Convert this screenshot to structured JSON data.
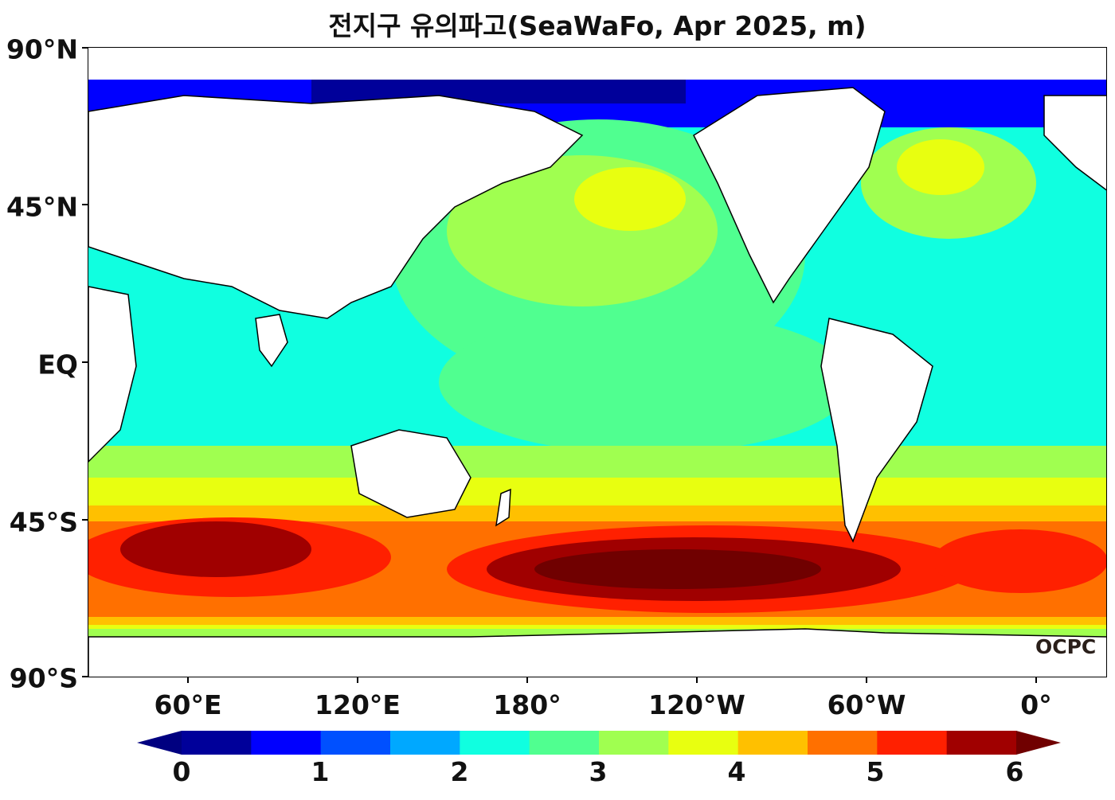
{
  "title": "전지구 유의파고(SeaWaFo, Apr 2025, m)",
  "logo": "OCPC",
  "chart_data": {
    "type": "heatmap",
    "title": "전지구 유의파고(SeaWaFo, Apr 2025, m)",
    "variable": "significant wave height",
    "units": "m",
    "x_ticks": [
      "60°E",
      "120°E",
      "180°",
      "120°W",
      "60°W",
      "0°"
    ],
    "y_ticks": [
      "90°N",
      "45°N",
      "EQ",
      "45°S",
      "90°S"
    ],
    "lon_range": [
      25,
      385
    ],
    "lat_range": [
      -90,
      90
    ],
    "colorbar": {
      "ticks": [
        "0",
        "1",
        "2",
        "3",
        "4",
        "5",
        "6"
      ],
      "levels": [
        0,
        0.5,
        1,
        1.5,
        2,
        2.5,
        3,
        3.5,
        4,
        4.5,
        5,
        5.5,
        6
      ],
      "colors": [
        "#00009a",
        "#0000ff",
        "#0050ff",
        "#00a8ff",
        "#10ffe0",
        "#50ff90",
        "#a0ff50",
        "#e8ff10",
        "#ffc000",
        "#ff7000",
        "#ff2000",
        "#a00000"
      ],
      "under_color": "#000080",
      "over_color": "#700000",
      "extend": "both"
    }
  },
  "colors": {
    "land": "#ffffff",
    "coastline": "#000000"
  }
}
